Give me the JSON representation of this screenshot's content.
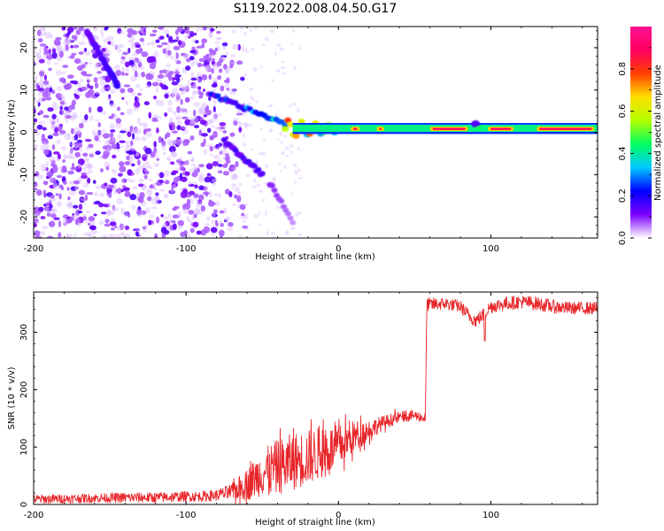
{
  "title": "S119.2022.008.04.50.G17",
  "colors": {
    "snr_line": "#e8262a",
    "axis": "#000000",
    "background": "#ffffff"
  },
  "chart_data": [
    {
      "type": "heatmap",
      "name": "spectrogram",
      "xlabel": "Height of straight line (km)",
      "ylabel": "Frequency (Hz)",
      "xlim": [
        -200,
        170
      ],
      "ylim": [
        -25,
        25
      ],
      "xticks": [
        -200,
        -100,
        0,
        100
      ],
      "xtick_labels": [
        "-200",
        "-100",
        "0",
        "100"
      ],
      "yticks": [
        -20,
        -10,
        0,
        10,
        20
      ],
      "ytick_labels": [
        "-20",
        "-10",
        "0",
        "10",
        "20"
      ],
      "colorbar": {
        "label": "Normalized spectral amplitude",
        "range": [
          0,
          1
        ],
        "ticks": [
          0.0,
          0.2,
          0.4,
          0.6,
          0.8
        ],
        "tick_labels": [
          "0.0",
          "0.2",
          "0.4",
          "0.6",
          "0.8"
        ],
        "colormap": [
          "#ffffff",
          "#7a00ff",
          "#0000ff",
          "#00c8ff",
          "#00ff60",
          "#b4ff00",
          "#ffe000",
          "#ff4000",
          "#ff0060",
          "#ff1090"
        ]
      },
      "features": {
        "noise_region_x": [
          -200,
          -70
        ],
        "tone_start_x": -30,
        "tone_frequency_hz": 0.8,
        "tone_band_hz": [
          0,
          2
        ],
        "upper_branch": {
          "x": [
            -165,
            -145
          ],
          "freq": [
            24,
            11
          ]
        },
        "mid_branch": {
          "x": [
            -85,
            -35
          ],
          "freq": [
            9,
            2
          ]
        },
        "lower_branch": {
          "x": [
            -75,
            -50
          ],
          "freq": [
            -2,
            -10
          ]
        },
        "tail_branch": {
          "x": [
            -45,
            -30
          ],
          "freq": [
            -12,
            -21
          ]
        }
      }
    },
    {
      "type": "line",
      "name": "snr",
      "xlabel": "Height of straight line (km)",
      "ylabel": "SNR (10 * v/v)",
      "xlim": [
        -200,
        170
      ],
      "ylim": [
        0,
        370
      ],
      "xticks": [
        -200,
        -100,
        0,
        100
      ],
      "xtick_labels": [
        "-200",
        "-100",
        "0",
        "100"
      ],
      "yticks": [
        0,
        100,
        200,
        300
      ],
      "ytick_labels": [
        "0",
        "100",
        "200",
        "300"
      ],
      "series": [
        {
          "name": "SNR",
          "x": [
            -200,
            -180,
            -160,
            -140,
            -120,
            -100,
            -90,
            -80,
            -70,
            -60,
            -50,
            -40,
            -30,
            -20,
            -10,
            0,
            10,
            20,
            30,
            40,
            50,
            57,
            58,
            60,
            70,
            80,
            85,
            90,
            95,
            100,
            110,
            120,
            130,
            140,
            150,
            160,
            170
          ],
          "values": [
            9,
            10,
            11,
            12,
            12,
            14,
            14,
            16,
            22,
            35,
            55,
            65,
            75,
            82,
            92,
            100,
            118,
            130,
            143,
            152,
            155,
            150,
            350,
            348,
            350,
            345,
            330,
            320,
            330,
            345,
            350,
            353,
            350,
            345,
            342,
            342,
            342
          ],
          "noise_amplitude": [
            8,
            8,
            8,
            9,
            9,
            9,
            9,
            10,
            14,
            28,
            40,
            48,
            50,
            48,
            45,
            38,
            28,
            18,
            12,
            10,
            9,
            9,
            12,
            12,
            11,
            11,
            12,
            12,
            12,
            12,
            12,
            12,
            12,
            12,
            11,
            11,
            11
          ]
        }
      ]
    }
  ]
}
